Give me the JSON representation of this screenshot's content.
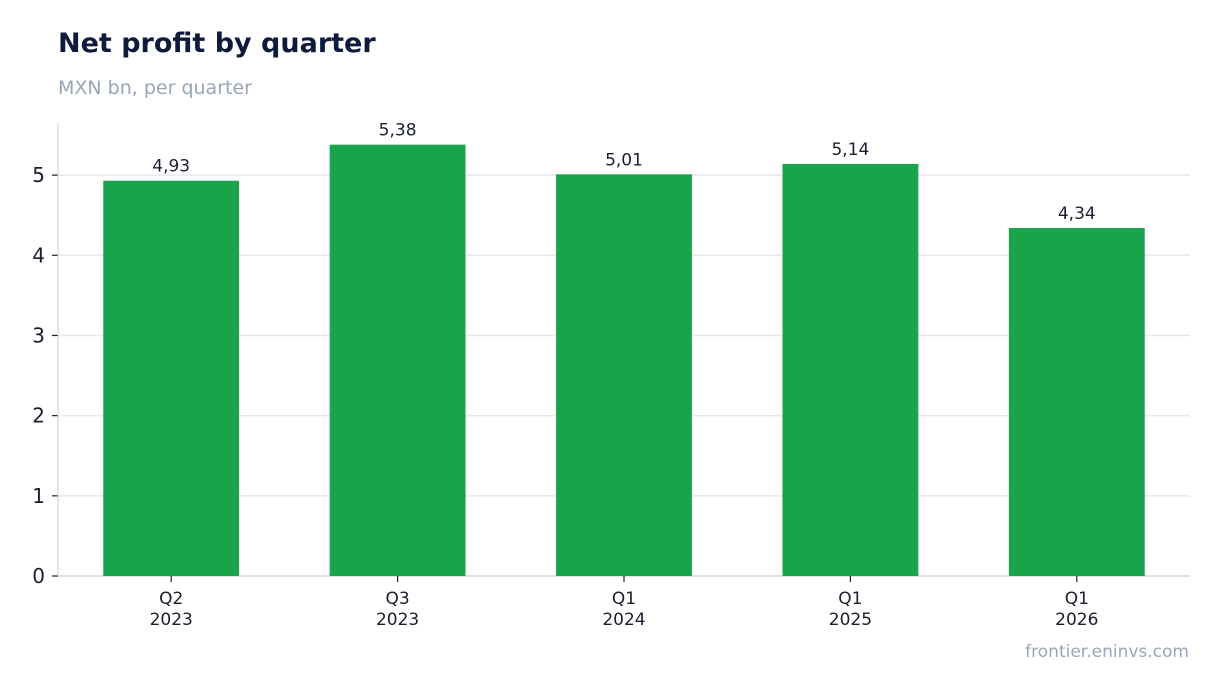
{
  "header": {
    "title": "Net profit by quarter",
    "subtitle": "MXN bn, per quarter"
  },
  "footer": {
    "source": "frontier.eninvs.com"
  },
  "colors": {
    "bar": "#19a34a",
    "grid": "#e4e7f0",
    "axis": "#c9cdd6",
    "text": "#1a1f2e"
  },
  "chart_data": {
    "type": "bar",
    "title": "Net profit by quarter",
    "subtitle": "MXN bn, per quarter",
    "xlabel": "",
    "ylabel": "",
    "categories": [
      [
        "Q2",
        "2023"
      ],
      [
        "Q3",
        "2023"
      ],
      [
        "Q1",
        "2024"
      ],
      [
        "Q1",
        "2025"
      ],
      [
        "Q1",
        "2026"
      ]
    ],
    "values": [
      4.93,
      5.38,
      5.01,
      5.14,
      4.34
    ],
    "data_labels": [
      "4,93",
      "5,38",
      "5,01",
      "5,14",
      "4,34"
    ],
    "yticks": [
      0,
      1,
      2,
      3,
      4,
      5
    ],
    "ylim": [
      0,
      5.65
    ],
    "grid": true,
    "legend": "none"
  }
}
